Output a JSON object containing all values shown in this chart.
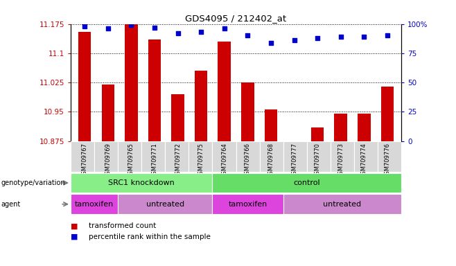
{
  "title": "GDS4095 / 212402_at",
  "samples": [
    "GSM709767",
    "GSM709769",
    "GSM709765",
    "GSM709771",
    "GSM709772",
    "GSM709775",
    "GSM709764",
    "GSM709766",
    "GSM709768",
    "GSM709777",
    "GSM709770",
    "GSM709773",
    "GSM709774",
    "GSM709776"
  ],
  "bar_values": [
    11.155,
    11.02,
    11.175,
    11.135,
    10.995,
    11.055,
    11.13,
    11.025,
    10.955,
    10.875,
    10.91,
    10.945,
    10.945,
    11.015
  ],
  "percentile_values": [
    98,
    96,
    99,
    97,
    92,
    93,
    96,
    90,
    84,
    86,
    88,
    89,
    89,
    90
  ],
  "ymin": 10.875,
  "ymax": 11.175,
  "yticks": [
    10.875,
    10.95,
    11.025,
    11.1,
    11.175
  ],
  "ytick_labels": [
    "10.875",
    "10.95",
    "11.025",
    "11.1",
    "11.175"
  ],
  "right_yticks": [
    0,
    25,
    50,
    75,
    100
  ],
  "right_ytick_labels": [
    "0",
    "25",
    "50",
    "75",
    "100%"
  ],
  "bar_color": "#cc0000",
  "dot_color": "#0000cc",
  "genotype_groups": [
    {
      "label": "SRC1 knockdown",
      "start": 0,
      "end": 6,
      "color": "#88ee88"
    },
    {
      "label": "control",
      "start": 6,
      "end": 14,
      "color": "#66dd66"
    }
  ],
  "agent_groups": [
    {
      "label": "tamoxifen",
      "start": 0,
      "end": 2,
      "color": "#dd44dd"
    },
    {
      "label": "untreated",
      "start": 2,
      "end": 6,
      "color": "#cc88cc"
    },
    {
      "label": "tamoxifen",
      "start": 6,
      "end": 9,
      "color": "#dd44dd"
    },
    {
      "label": "untreated",
      "start": 9,
      "end": 14,
      "color": "#cc88cc"
    }
  ],
  "legend_items": [
    {
      "label": "transformed count",
      "color": "#cc0000"
    },
    {
      "label": "percentile rank within the sample",
      "color": "#0000cc"
    }
  ],
  "label_color_left": "#cc0000",
  "label_color_right": "#0000cc"
}
